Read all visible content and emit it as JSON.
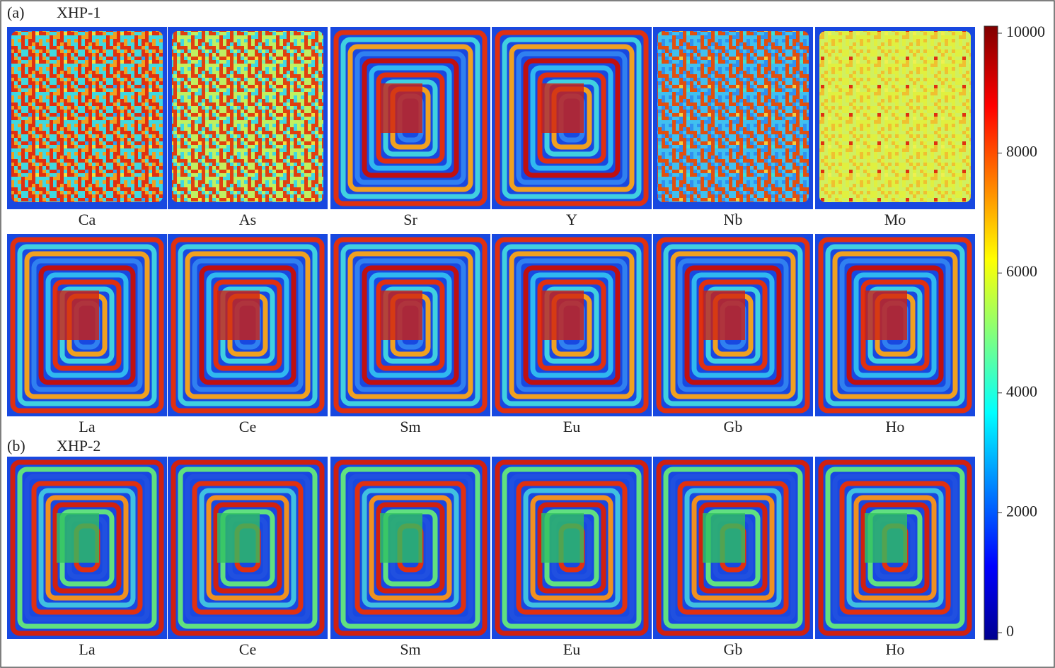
{
  "sections": [
    {
      "tag": "(a)",
      "title": "XHP-1",
      "rows": [
        [
          "Ca",
          "As",
          "Sr",
          "Y",
          "Nb",
          "Mo"
        ],
        [
          "La",
          "Ce",
          "Sm",
          "Eu",
          "Gb",
          "Ho"
        ]
      ]
    },
    {
      "tag": "(b)",
      "title": "XHP-2",
      "rows": [
        [
          "La",
          "Ce",
          "Sm",
          "Eu",
          "Gb",
          "Ho"
        ]
      ]
    }
  ],
  "colorbar": {
    "lim": [
      0,
      10000
    ],
    "ticks": [
      0,
      2000,
      4000,
      6000,
      8000,
      10000
    ]
  }
}
